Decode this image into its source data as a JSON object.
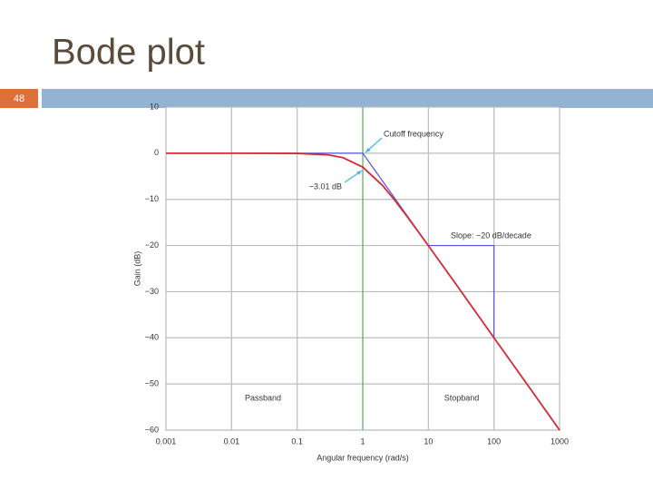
{
  "slide": {
    "title": "Bode plot",
    "page_number": 48
  },
  "chart_data": {
    "type": "line",
    "x_label": "Angular frequency (rad/s)",
    "y_label": "Gain (dB)",
    "xscale": "log",
    "grid": true,
    "xlim": [
      0.001,
      1000
    ],
    "xticks": [
      0.001,
      0.01,
      0.1,
      1,
      10,
      100,
      1000
    ],
    "ylim": [
      -60,
      10
    ],
    "yticks": [
      {
        "value": -60,
        "label": "−60"
      },
      {
        "value": -50,
        "label": "−50"
      },
      {
        "value": -40,
        "label": "−40"
      },
      {
        "value": -30,
        "label": "−30"
      },
      {
        "value": -20,
        "label": "−20"
      },
      {
        "value": -10,
        "label": "−10"
      },
      0,
      10
    ],
    "series": [
      {
        "color": "#5aba5a",
        "x": [
          1,
          1
        ],
        "values": [
          10,
          -60
        ]
      },
      {
        "color": "#5555dd",
        "x": [
          0.001,
          1,
          1000
        ],
        "values": [
          0,
          0,
          -60
        ]
      },
      {
        "color": "#5555dd",
        "x": [
          10,
          100,
          100
        ],
        "values": [
          -20,
          -20,
          -40
        ]
      },
      {
        "color": "#d42a3a",
        "x": [
          0.001,
          0.01,
          0.1,
          0.3,
          0.5,
          1,
          2,
          3,
          5,
          10,
          30,
          100,
          300,
          1000
        ],
        "values": [
          0,
          0,
          -0.04,
          -0.37,
          -0.97,
          -3.01,
          -6.99,
          -10,
          -14.15,
          -20.04,
          -29.5,
          -40,
          -49.5,
          -60
        ]
      }
    ],
    "annotations": [
      "Cutoff frequency",
      "−3.01 dB",
      "Slope: −20 dB/decade",
      "Passband",
      "Stopband"
    ]
  }
}
